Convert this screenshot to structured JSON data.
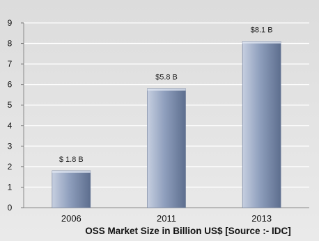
{
  "chart_data": {
    "type": "bar",
    "categories": [
      "2006",
      "2011",
      "2013"
    ],
    "values": [
      1.8,
      5.8,
      8.1
    ],
    "data_labels": [
      "$ 1.8 B",
      "$5.8 B",
      "$8.1 B"
    ],
    "title": "",
    "xlabel": "OSS Market Size in Billion US$ [Source :- IDC]",
    "ylabel": "",
    "ylim": [
      0,
      9
    ],
    "yticks": [
      0,
      1,
      2,
      3,
      4,
      5,
      6,
      7,
      8,
      9
    ],
    "grid": true,
    "legend": "none",
    "colors": {
      "bar_light": "#c6cfe0",
      "bar_mid": "#8f9fbd",
      "bar_dark": "#5d6e8e",
      "grid": "#ffffff",
      "background": "#e3e3e3"
    }
  }
}
